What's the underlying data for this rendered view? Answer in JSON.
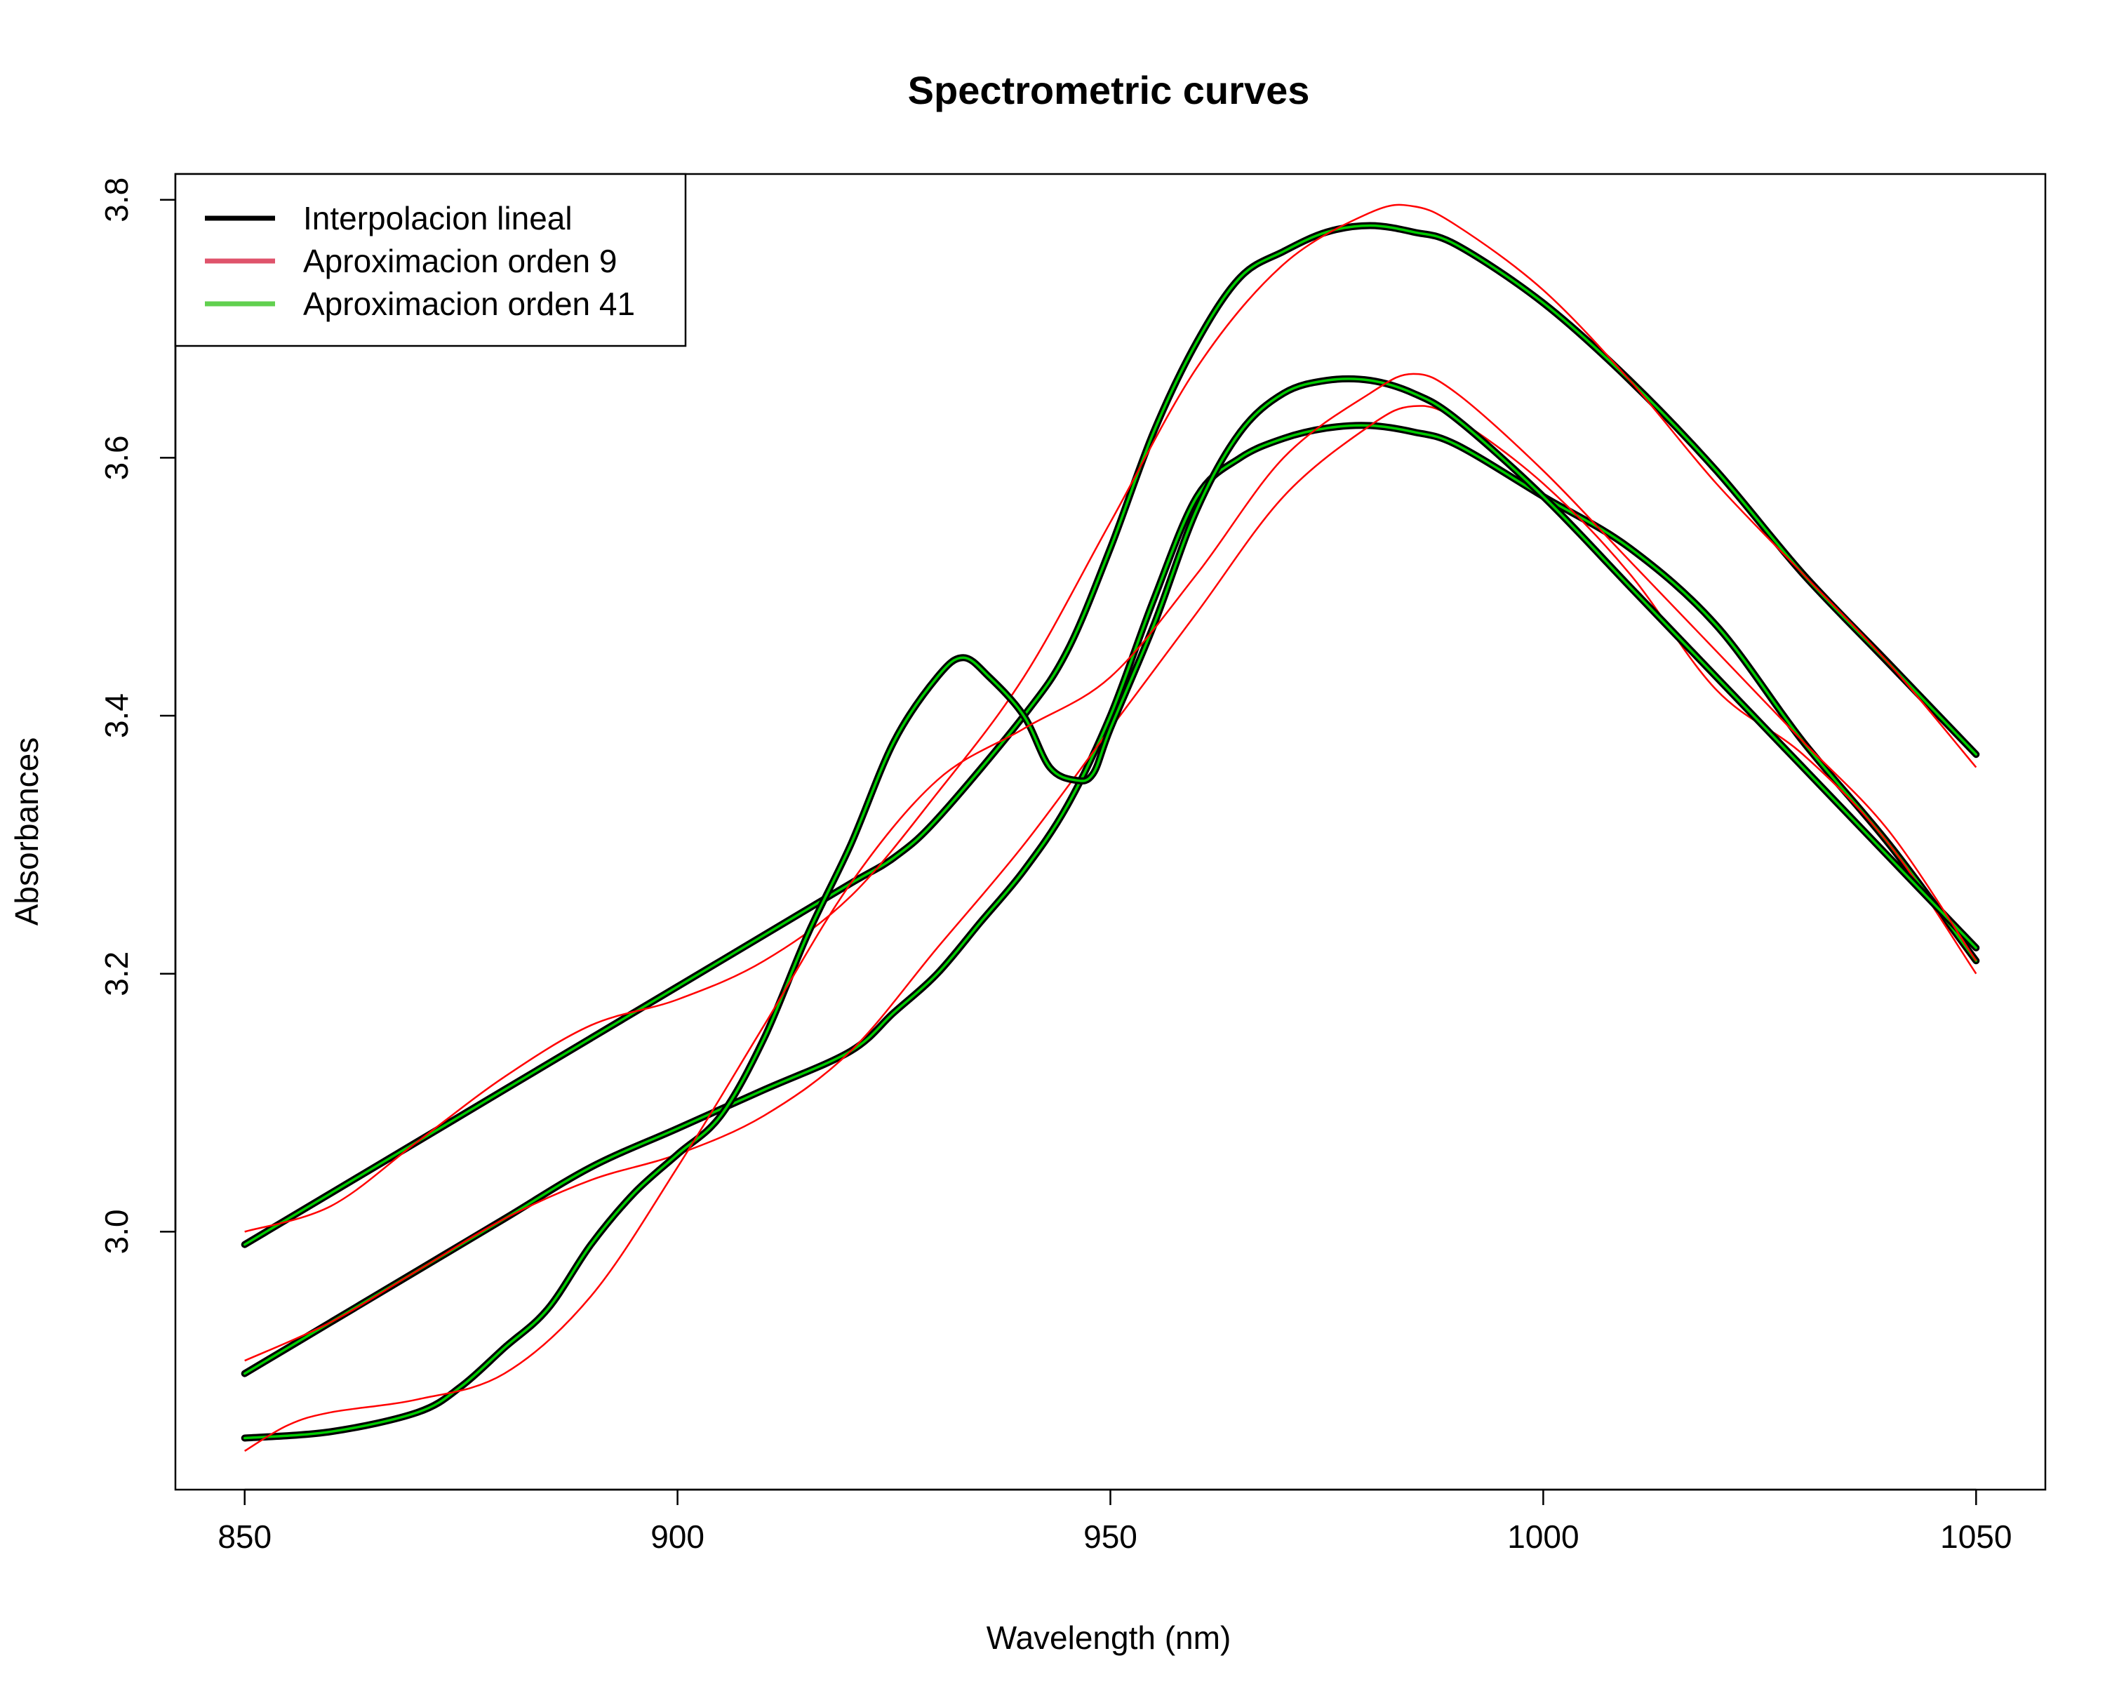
{
  "chart_data": {
    "type": "line",
    "title": "Spectrometric curves",
    "xlabel": "Wavelength (nm)",
    "ylabel": "Absorbances",
    "xlim": [
      842,
      1058
    ],
    "ylim": [
      2.8,
      3.82
    ],
    "x_ticks": [
      850,
      900,
      950,
      1000,
      1050
    ],
    "y_ticks": [
      3.0,
      3.2,
      3.4,
      3.6,
      3.8
    ],
    "x_tick_labels": [
      "850",
      "900",
      "950",
      "1000",
      "1050"
    ],
    "y_tick_labels": [
      "3.0",
      "3.2",
      "3.4",
      "3.6",
      "3.8"
    ],
    "grid": false,
    "legend": {
      "position": "top-left",
      "entries": [
        {
          "label": "Interpolacion lineal",
          "color": "#000000"
        },
        {
          "label": "Aproximacion orden 9",
          "color": "#DF536B"
        },
        {
          "label": "Aproximacion orden 41",
          "color": "#61D04F"
        }
      ]
    },
    "colors": {
      "interpolation": "#000000",
      "order9_legend": "#DF536B",
      "order9_curve": "#FF0000",
      "order41": "#00CC00"
    },
    "series": [
      {
        "linear": [
          [
            850,
            2.99
          ],
          [
            860,
            3.03
          ],
          [
            870,
            3.07
          ],
          [
            880,
            3.11
          ],
          [
            890,
            3.15
          ],
          [
            900,
            3.19
          ],
          [
            910,
            3.23
          ],
          [
            920,
            3.27
          ],
          [
            925,
            3.29
          ],
          [
            930,
            3.32
          ],
          [
            940,
            3.4
          ],
          [
            945,
            3.45
          ],
          [
            950,
            3.53
          ],
          [
            955,
            3.62
          ],
          [
            960,
            3.69
          ],
          [
            965,
            3.74
          ],
          [
            970,
            3.76
          ],
          [
            975,
            3.775
          ],
          [
            980,
            3.78
          ],
          [
            985,
            3.775
          ],
          [
            990,
            3.765
          ],
          [
            1000,
            3.72
          ],
          [
            1010,
            3.66
          ],
          [
            1020,
            3.59
          ],
          [
            1030,
            3.51
          ],
          [
            1040,
            3.44
          ],
          [
            1050,
            3.37
          ]
        ],
        "order9": [
          [
            850,
            3.0
          ],
          [
            860,
            3.02
          ],
          [
            870,
            3.07
          ],
          [
            880,
            3.12
          ],
          [
            890,
            3.16
          ],
          [
            900,
            3.18
          ],
          [
            910,
            3.21
          ],
          [
            920,
            3.26
          ],
          [
            930,
            3.34
          ],
          [
            940,
            3.43
          ],
          [
            950,
            3.55
          ],
          [
            960,
            3.67
          ],
          [
            970,
            3.75
          ],
          [
            980,
            3.79
          ],
          [
            985,
            3.795
          ],
          [
            990,
            3.78
          ],
          [
            1000,
            3.73
          ],
          [
            1010,
            3.66
          ],
          [
            1020,
            3.58
          ],
          [
            1030,
            3.51
          ],
          [
            1040,
            3.44
          ],
          [
            1050,
            3.36
          ]
        ]
      },
      {
        "linear": [
          [
            850,
            2.89
          ],
          [
            860,
            2.93
          ],
          [
            870,
            2.97
          ],
          [
            880,
            3.01
          ],
          [
            890,
            3.05
          ],
          [
            900,
            3.08
          ],
          [
            910,
            3.11
          ],
          [
            920,
            3.14
          ],
          [
            925,
            3.17
          ],
          [
            930,
            3.2
          ],
          [
            935,
            3.24
          ],
          [
            940,
            3.28
          ],
          [
            945,
            3.33
          ],
          [
            950,
            3.4
          ],
          [
            955,
            3.49
          ],
          [
            960,
            3.57
          ],
          [
            965,
            3.6
          ],
          [
            970,
            3.615
          ],
          [
            975,
            3.623
          ],
          [
            980,
            3.625
          ],
          [
            985,
            3.62
          ],
          [
            990,
            3.61
          ],
          [
            1000,
            3.57
          ],
          [
            1010,
            3.53
          ],
          [
            1020,
            3.47
          ],
          [
            1030,
            3.38
          ],
          [
            1040,
            3.3
          ],
          [
            1050,
            3.21
          ]
        ],
        "order9": [
          [
            850,
            2.9
          ],
          [
            860,
            2.93
          ],
          [
            870,
            2.97
          ],
          [
            880,
            3.01
          ],
          [
            890,
            3.04
          ],
          [
            900,
            3.06
          ],
          [
            910,
            3.09
          ],
          [
            920,
            3.14
          ],
          [
            930,
            3.22
          ],
          [
            940,
            3.3
          ],
          [
            950,
            3.39
          ],
          [
            960,
            3.48
          ],
          [
            970,
            3.57
          ],
          [
            980,
            3.625
          ],
          [
            985,
            3.64
          ],
          [
            990,
            3.63
          ],
          [
            1000,
            3.58
          ],
          [
            1010,
            3.51
          ],
          [
            1020,
            3.42
          ],
          [
            1030,
            3.37
          ],
          [
            1040,
            3.3
          ],
          [
            1050,
            3.2
          ]
        ]
      },
      {
        "linear": [
          [
            850,
            2.84
          ],
          [
            860,
            2.845
          ],
          [
            870,
            2.86
          ],
          [
            875,
            2.88
          ],
          [
            880,
            2.91
          ],
          [
            885,
            2.94
          ],
          [
            890,
            2.99
          ],
          [
            895,
            3.03
          ],
          [
            900,
            3.06
          ],
          [
            905,
            3.09
          ],
          [
            910,
            3.15
          ],
          [
            915,
            3.23
          ],
          [
            920,
            3.3
          ],
          [
            925,
            3.38
          ],
          [
            930,
            3.43
          ],
          [
            933,
            3.445
          ],
          [
            936,
            3.43
          ],
          [
            940,
            3.4
          ],
          [
            943,
            3.36
          ],
          [
            946,
            3.35
          ],
          [
            948,
            3.355
          ],
          [
            950,
            3.39
          ],
          [
            955,
            3.47
          ],
          [
            960,
            3.56
          ],
          [
            965,
            3.62
          ],
          [
            970,
            3.65
          ],
          [
            975,
            3.66
          ],
          [
            980,
            3.66
          ],
          [
            985,
            3.65
          ],
          [
            990,
            3.63
          ],
          [
            1000,
            3.57
          ],
          [
            1010,
            3.5
          ],
          [
            1020,
            3.43
          ],
          [
            1030,
            3.36
          ],
          [
            1040,
            3.29
          ],
          [
            1050,
            3.22
          ]
        ],
        "order9": [
          [
            850,
            2.83
          ],
          [
            855,
            2.85
          ],
          [
            860,
            2.86
          ],
          [
            870,
            2.87
          ],
          [
            880,
            2.89
          ],
          [
            890,
            2.95
          ],
          [
            900,
            3.05
          ],
          [
            910,
            3.16
          ],
          [
            920,
            3.27
          ],
          [
            930,
            3.35
          ],
          [
            940,
            3.39
          ],
          [
            950,
            3.43
          ],
          [
            960,
            3.51
          ],
          [
            970,
            3.6
          ],
          [
            980,
            3.65
          ],
          [
            985,
            3.665
          ],
          [
            990,
            3.65
          ],
          [
            1000,
            3.59
          ],
          [
            1010,
            3.52
          ],
          [
            1020,
            3.45
          ],
          [
            1030,
            3.38
          ],
          [
            1040,
            3.31
          ],
          [
            1050,
            3.21
          ]
        ]
      }
    ]
  }
}
